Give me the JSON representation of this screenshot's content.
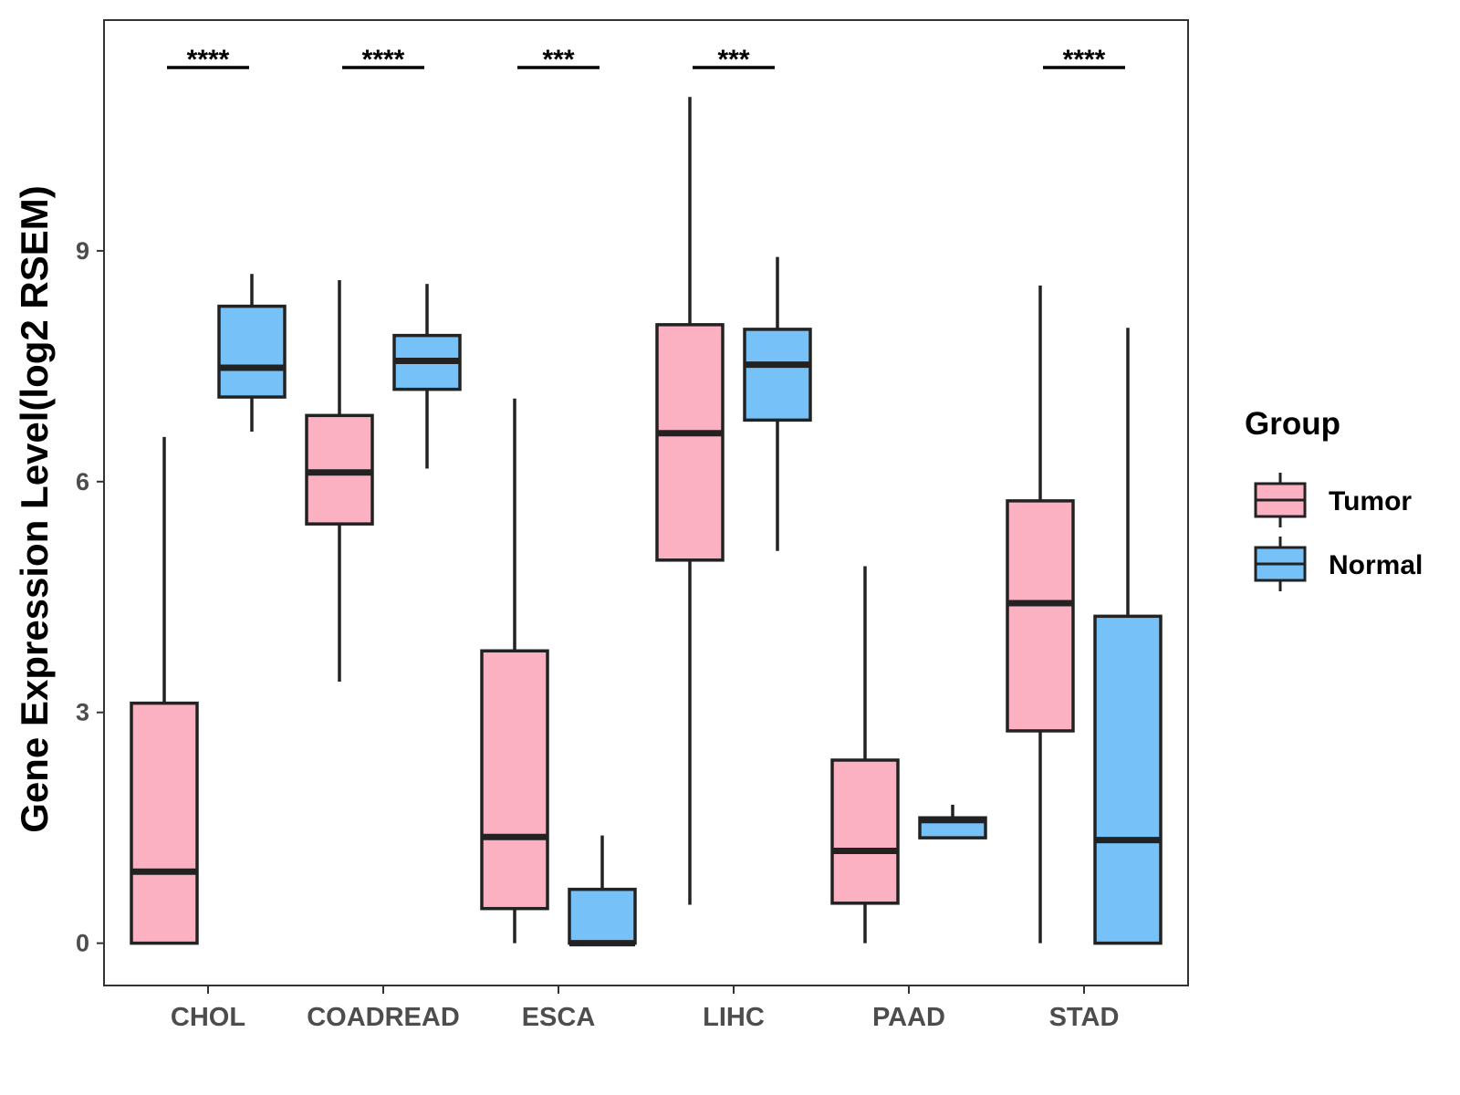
{
  "chart_data": {
    "type": "boxplot",
    "title": "",
    "xlabel": "",
    "ylabel": "Gene Expression Level(log2 RSEM)",
    "ylim": [
      -0.55,
      12.0
    ],
    "yticks": [
      0,
      3,
      6,
      9
    ],
    "grid": false,
    "categories": [
      "CHOL",
      "COADREAD",
      "ESCA",
      "LIHC",
      "PAAD",
      "STAD"
    ],
    "legend": {
      "title": "Group",
      "position": "right",
      "entries": [
        {
          "name": "Tumor",
          "color": "#FBB1C2"
        },
        {
          "name": "Normal",
          "color": "#76C1F7"
        }
      ]
    },
    "series": [
      {
        "name": "Tumor",
        "color": "#FBB1C2",
        "boxes": [
          {
            "whisker_low": 0.0,
            "q1": 0.0,
            "median": 0.93,
            "q3": 3.12,
            "whisker_high": 6.58
          },
          {
            "whisker_low": 3.4,
            "q1": 5.45,
            "median": 6.12,
            "q3": 6.86,
            "whisker_high": 8.62
          },
          {
            "whisker_low": 0.0,
            "q1": 0.45,
            "median": 1.38,
            "q3": 3.8,
            "whisker_high": 7.08
          },
          {
            "whisker_low": 0.5,
            "q1": 4.98,
            "median": 6.63,
            "q3": 8.04,
            "whisker_high": 11.0
          },
          {
            "whisker_low": 0.0,
            "q1": 0.52,
            "median": 1.2,
            "q3": 2.38,
            "whisker_high": 4.9
          },
          {
            "whisker_low": 0.0,
            "q1": 2.76,
            "median": 4.42,
            "q3": 5.75,
            "whisker_high": 8.55
          }
        ]
      },
      {
        "name": "Normal",
        "color": "#76C1F7",
        "boxes": [
          {
            "whisker_low": 6.65,
            "q1": 7.1,
            "median": 7.48,
            "q3": 8.28,
            "whisker_high": 8.7
          },
          {
            "whisker_low": 6.17,
            "q1": 7.2,
            "median": 7.57,
            "q3": 7.9,
            "whisker_high": 8.57
          },
          {
            "whisker_low": 0.0,
            "q1": 0.0,
            "median": 0.0,
            "q3": 0.7,
            "whisker_high": 1.4
          },
          {
            "whisker_low": 5.1,
            "q1": 6.8,
            "median": 7.52,
            "q3": 7.98,
            "whisker_high": 8.92
          },
          {
            "whisker_low": 1.37,
            "q1": 1.37,
            "median": 1.6,
            "q3": 1.63,
            "whisker_high": 1.8
          },
          {
            "whisker_low": 0.0,
            "q1": 0.0,
            "median": 1.34,
            "q3": 4.25,
            "whisker_high": 8.0
          }
        ]
      }
    ],
    "significance": [
      "****",
      "****",
      "***",
      "***",
      "",
      "****"
    ]
  }
}
